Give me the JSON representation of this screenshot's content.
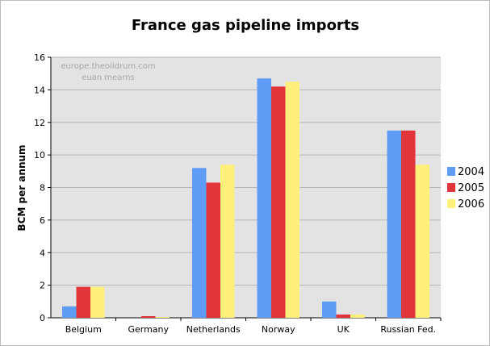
{
  "chart_data": {
    "type": "bar",
    "title": "France gas pipeline imports",
    "xlabel": "",
    "ylabel": "BCM per annum",
    "ylim": [
      0,
      16
    ],
    "yticks": [
      0,
      2,
      4,
      6,
      8,
      10,
      12,
      14,
      16
    ],
    "categories": [
      "Belgium",
      "Germany",
      "Netherlands",
      "Norway",
      "UK",
      "Russian Fed."
    ],
    "series": [
      {
        "name": "2004",
        "color": "#5f9cf5",
        "values": [
          0.7,
          0.0,
          9.2,
          14.7,
          1.0,
          11.5
        ]
      },
      {
        "name": "2005",
        "color": "#e2353b",
        "values": [
          1.9,
          0.1,
          8.3,
          14.2,
          0.2,
          11.5
        ]
      },
      {
        "name": "2006",
        "color": "#fff07c",
        "values": [
          1.9,
          0.05,
          9.4,
          14.5,
          0.2,
          9.4
        ]
      }
    ],
    "grid": true,
    "legend_position": "right",
    "watermark": [
      "europe.theoildrum.com",
      "euan mearns"
    ],
    "plot_background": "#e3e3e3"
  }
}
